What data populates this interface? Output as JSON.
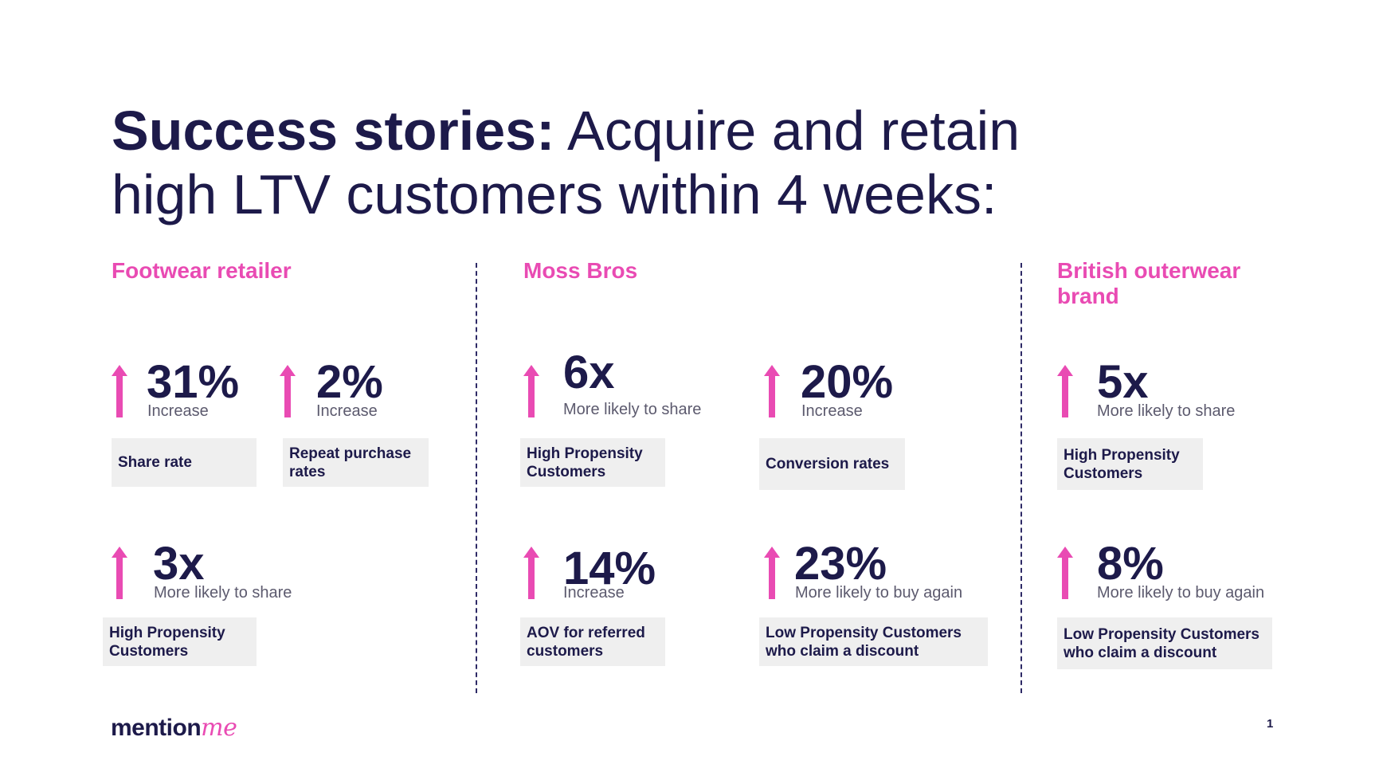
{
  "title": {
    "bold": "Success stories:",
    "rest": " Acquire and retain high LTV customers within 4 weeks:"
  },
  "sections": [
    {
      "title": "Footwear retailer"
    },
    {
      "title": "Moss Bros"
    },
    {
      "title": "British outerwear brand"
    }
  ],
  "stats": [
    {
      "value": "31%",
      "sub": "Increase",
      "label": "Share rate"
    },
    {
      "value": "2%",
      "sub": "Increase",
      "label": "Repeat purchase rates"
    },
    {
      "value": "3x",
      "sub": "More likely to share",
      "label": "High Propensity Customers"
    },
    {
      "value": "6x",
      "sub": "More likely to share",
      "label": "High Propensity Customers"
    },
    {
      "value": "20%",
      "sub": "Increase",
      "label": "Conversion rates"
    },
    {
      "value": "14%",
      "sub": "Increase",
      "label": "AOV for referred customers"
    },
    {
      "value": "23%",
      "sub": "More likely to buy again",
      "label": "Low Propensity Customers who claim a discount"
    },
    {
      "value": "5x",
      "sub": "More likely to share",
      "label": "High Propensity Customers"
    },
    {
      "value": "8%",
      "sub": "More likely to buy again",
      "label": "Low Propensity Customers who claim a discount"
    }
  ],
  "logo": {
    "part1": "mention",
    "part2": "me"
  },
  "page_number": "1",
  "colors": {
    "accent": "#e94bb3",
    "text": "#1d1a4a",
    "label_bg": "#efefef"
  }
}
